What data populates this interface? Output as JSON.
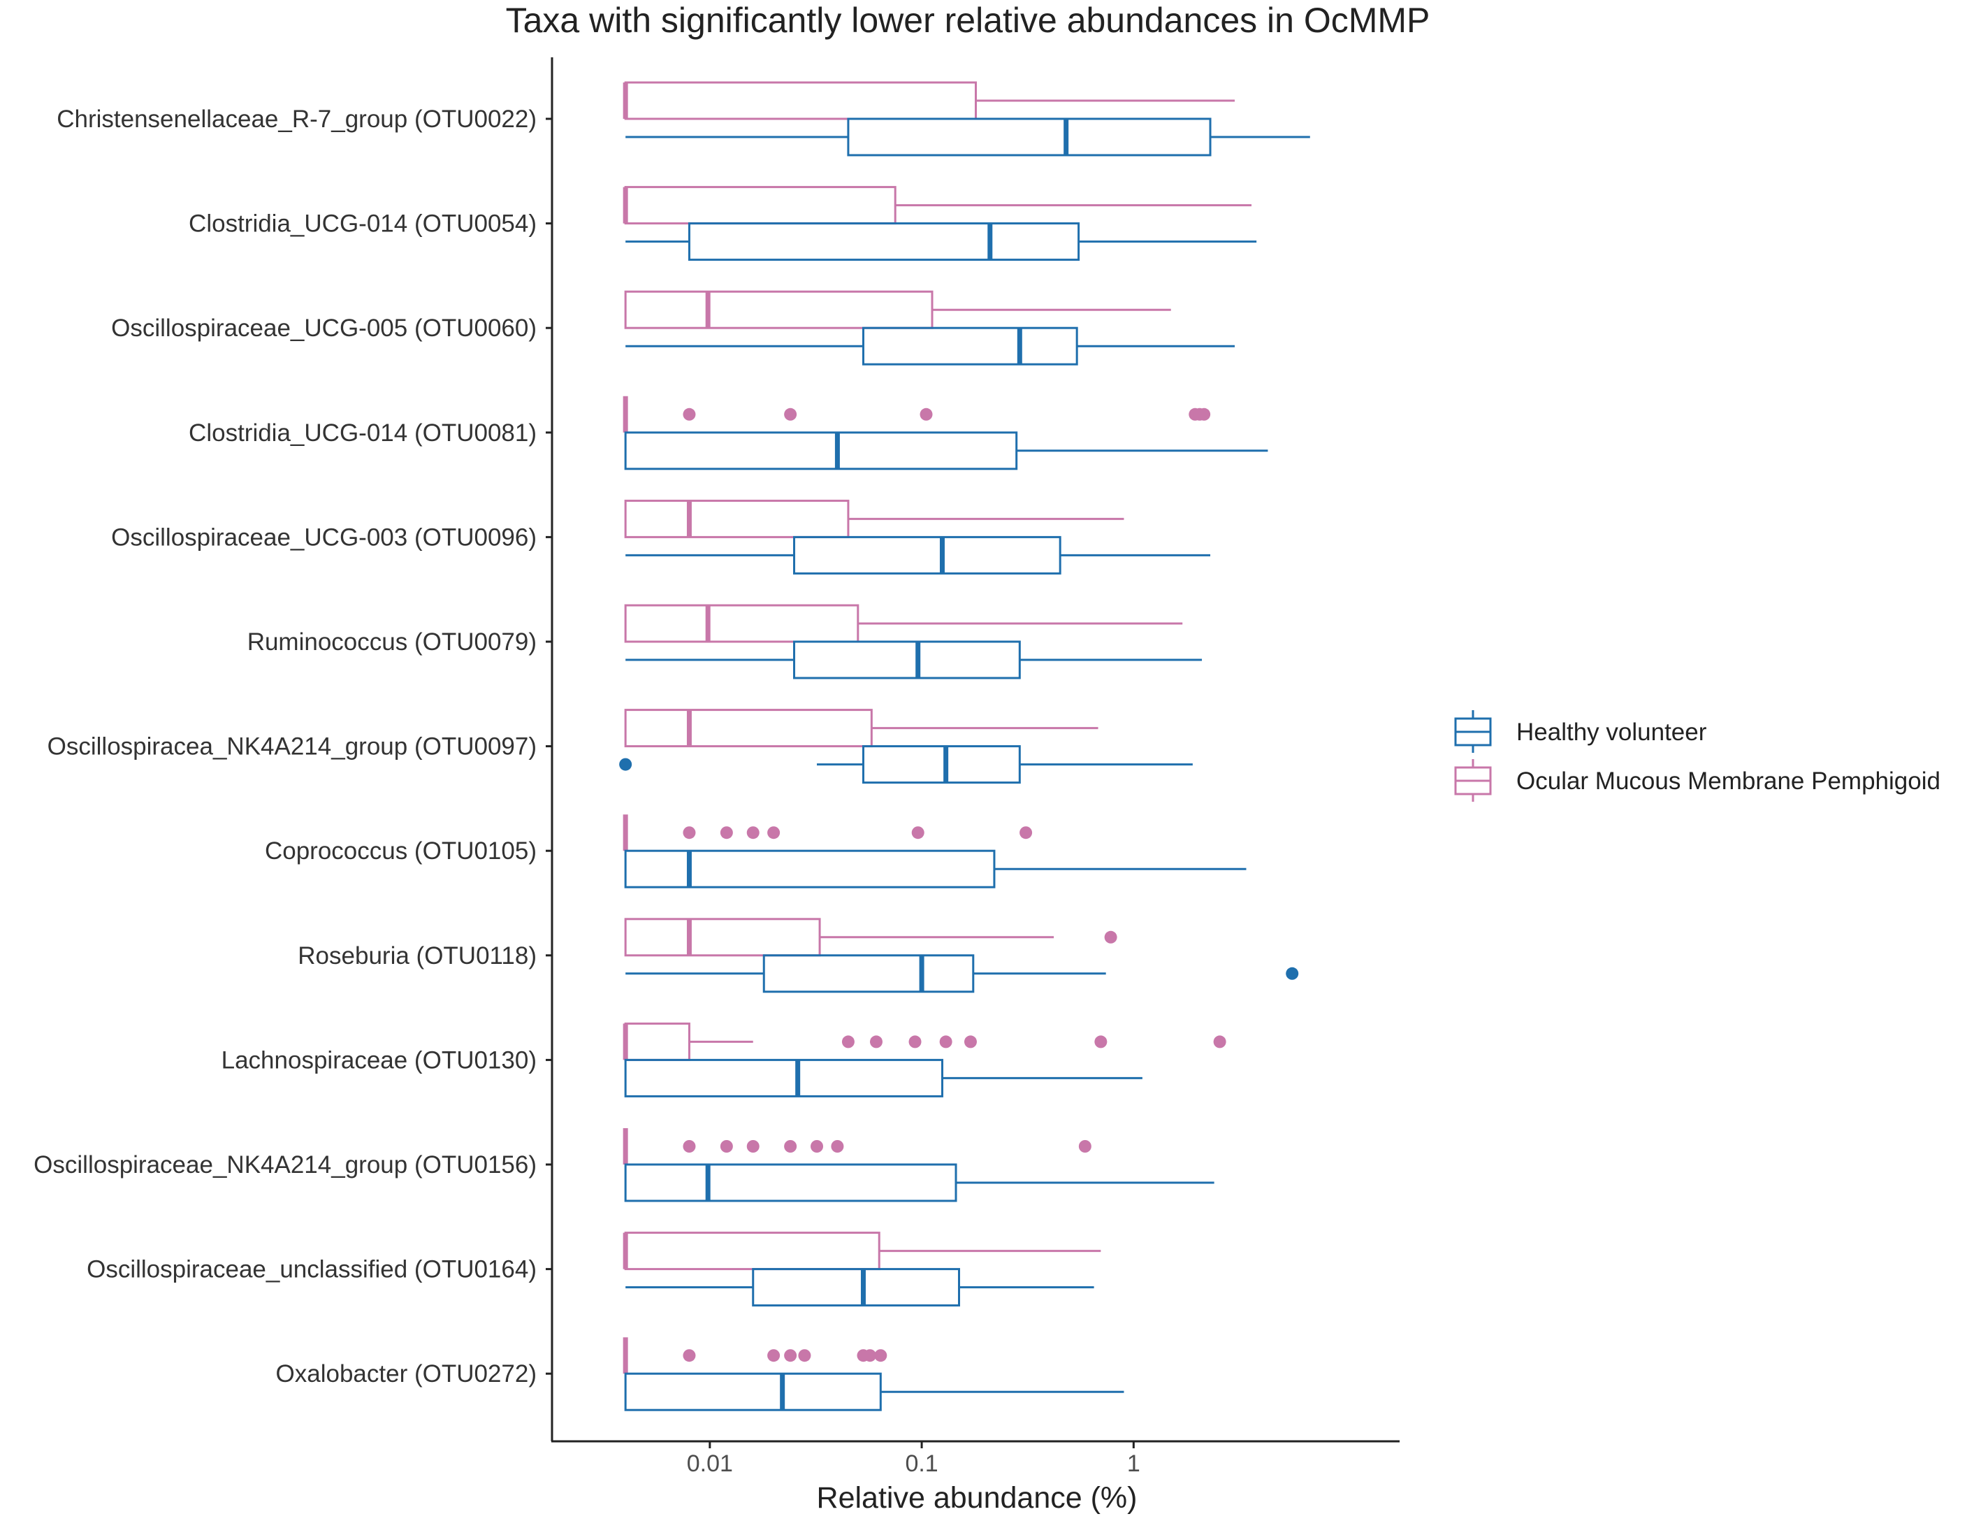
{
  "chart_data": {
    "type": "boxplot",
    "title": "Taxa with significantly lower relative abundances in OcMMP",
    "xlabel": "Relative abundance (%)",
    "ylabel": "",
    "x_scale": "log10",
    "xlim": [
      0.0018,
      18
    ],
    "x_ticks": [
      {
        "value": 0.01,
        "label": "0.01"
      },
      {
        "value": 0.1,
        "label": "0.1"
      },
      {
        "value": 1,
        "label": "1"
      }
    ],
    "legend": {
      "position": "right",
      "entries": [
        {
          "key": "hv",
          "label": "Healthy volunteer",
          "color": "#1f6fad"
        },
        {
          "key": "om",
          "label": "Ocular Mucous Membrane Pemphigoid",
          "color": "#c877a9"
        }
      ]
    },
    "groups": [
      {
        "taxon": "Christensenellaceae_R-7_group (OTU0022)",
        "om": {
          "min": 0.004,
          "q1": 0.004,
          "median": 0.004,
          "q3": 0.18,
          "max": 3.0,
          "outliers": []
        },
        "hv": {
          "min": 0.004,
          "q1": 0.045,
          "median": 0.48,
          "q3": 2.3,
          "max": 6.8,
          "outliers": []
        }
      },
      {
        "taxon": "Clostridia_UCG-014 (OTU0054)",
        "om": {
          "min": 0.004,
          "q1": 0.004,
          "median": 0.004,
          "q3": 0.075,
          "max": 3.6,
          "outliers": []
        },
        "hv": {
          "min": 0.004,
          "q1": 0.008,
          "median": 0.21,
          "q3": 0.55,
          "max": 3.8,
          "outliers": []
        }
      },
      {
        "taxon": "Oscillospiraceae_UCG-005 (OTU0060)",
        "om": {
          "min": 0.004,
          "q1": 0.004,
          "median": 0.0098,
          "q3": 0.112,
          "max": 1.5,
          "outliers": []
        },
        "hv": {
          "min": 0.004,
          "q1": 0.053,
          "median": 0.29,
          "q3": 0.54,
          "max": 3.0,
          "outliers": []
        }
      },
      {
        "taxon": "Clostridia_UCG-014 (OTU0081)",
        "om": {
          "min": 0.004,
          "q1": 0.004,
          "median": 0.004,
          "q3": 0.004,
          "max": 0.004,
          "outliers": [
            0.008,
            0.024,
            0.105,
            1.95,
            2.05,
            2.15
          ]
        },
        "hv": {
          "min": 0.004,
          "q1": 0.004,
          "median": 0.04,
          "q3": 0.28,
          "max": 4.3,
          "outliers": []
        }
      },
      {
        "taxon": "Oscillospiraceae_UCG-003 (OTU0096)",
        "om": {
          "min": 0.004,
          "q1": 0.004,
          "median": 0.008,
          "q3": 0.045,
          "max": 0.9,
          "outliers": []
        },
        "hv": {
          "min": 0.004,
          "q1": 0.025,
          "median": 0.125,
          "q3": 0.45,
          "max": 2.3,
          "outliers": []
        }
      },
      {
        "taxon": "Ruminococcus (OTU0079)",
        "om": {
          "min": 0.004,
          "q1": 0.004,
          "median": 0.0098,
          "q3": 0.05,
          "max": 1.7,
          "outliers": []
        },
        "hv": {
          "min": 0.004,
          "q1": 0.025,
          "median": 0.096,
          "q3": 0.29,
          "max": 2.1,
          "outliers": []
        }
      },
      {
        "taxon": "Oscillospiracea_NK4A214_group (OTU0097)",
        "om": {
          "min": 0.004,
          "q1": 0.004,
          "median": 0.008,
          "q3": 0.058,
          "max": 0.68,
          "outliers": []
        },
        "hv": {
          "min": 0.032,
          "q1": 0.053,
          "median": 0.13,
          "q3": 0.29,
          "max": 1.9,
          "outliers": [
            0.004
          ]
        }
      },
      {
        "taxon": "Coprococcus (OTU0105)",
        "om": {
          "min": 0.004,
          "q1": 0.004,
          "median": 0.004,
          "q3": 0.004,
          "max": 0.004,
          "outliers": [
            0.008,
            0.012,
            0.016,
            0.02,
            0.096,
            0.31
          ]
        },
        "hv": {
          "min": 0.004,
          "q1": 0.004,
          "median": 0.008,
          "q3": 0.22,
          "max": 3.4,
          "outliers": []
        }
      },
      {
        "taxon": "Roseburia (OTU0118)",
        "om": {
          "min": 0.004,
          "q1": 0.004,
          "median": 0.008,
          "q3": 0.033,
          "max": 0.42,
          "outliers": [
            0.78
          ]
        },
        "hv": {
          "min": 0.004,
          "q1": 0.018,
          "median": 0.1,
          "q3": 0.175,
          "max": 0.74,
          "outliers": [
            5.6
          ]
        }
      },
      {
        "taxon": "Lachnospiraceae (OTU0130)",
        "om": {
          "min": 0.004,
          "q1": 0.004,
          "median": 0.004,
          "q3": 0.008,
          "max": 0.016,
          "outliers": [
            0.045,
            0.061,
            0.093,
            0.13,
            0.17,
            0.7,
            2.55
          ]
        },
        "hv": {
          "min": 0.004,
          "q1": 0.004,
          "median": 0.026,
          "q3": 0.125,
          "max": 1.1,
          "outliers": []
        }
      },
      {
        "taxon": "Oscillospiraceae_NK4A214_group (OTU0156)",
        "om": {
          "min": 0.004,
          "q1": 0.004,
          "median": 0.004,
          "q3": 0.004,
          "max": 0.004,
          "outliers": [
            0.008,
            0.012,
            0.016,
            0.024,
            0.032,
            0.04,
            0.59
          ]
        },
        "hv": {
          "min": 0.004,
          "q1": 0.004,
          "median": 0.0098,
          "q3": 0.145,
          "max": 2.4,
          "outliers": []
        }
      },
      {
        "taxon": "Oscillospiraceae_unclassified (OTU0164)",
        "om": {
          "min": 0.004,
          "q1": 0.004,
          "median": 0.004,
          "q3": 0.063,
          "max": 0.7,
          "outliers": []
        },
        "hv": {
          "min": 0.004,
          "q1": 0.016,
          "median": 0.053,
          "q3": 0.15,
          "max": 0.65,
          "outliers": []
        }
      },
      {
        "taxon": "Oxalobacter (OTU0272)",
        "om": {
          "min": 0.004,
          "q1": 0.004,
          "median": 0.004,
          "q3": 0.004,
          "max": 0.004,
          "outliers": [
            0.008,
            0.02,
            0.024,
            0.028,
            0.053,
            0.057,
            0.064
          ]
        },
        "hv": {
          "min": 0.004,
          "q1": 0.004,
          "median": 0.022,
          "q3": 0.064,
          "max": 0.9,
          "outliers": []
        }
      }
    ]
  }
}
